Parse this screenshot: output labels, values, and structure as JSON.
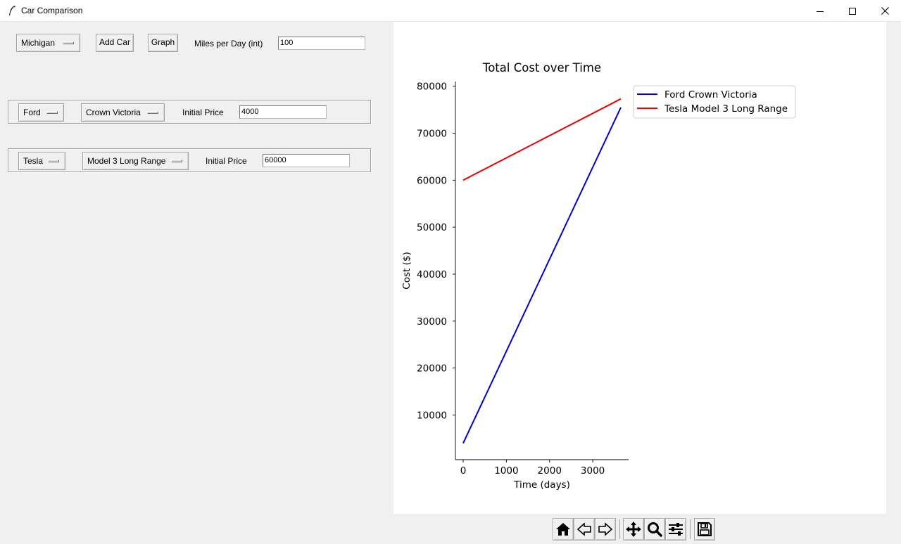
{
  "window": {
    "title": "Car Comparison",
    "app_icon": "feather-icon",
    "controls": [
      "minimize-icon",
      "maximize-icon",
      "close-icon"
    ]
  },
  "controls": {
    "state_selected": "Michigan",
    "add_car_label": "Add Car",
    "graph_label": "Graph",
    "miles_label": "Miles per Day (int)",
    "miles_value": "100"
  },
  "cars": [
    {
      "make": "Ford",
      "model": "Crown Victoria",
      "price_label": "Initial Price",
      "price_value": "4000"
    },
    {
      "make": "Tesla",
      "model": "Model 3 Long Range",
      "price_label": "Initial Price",
      "price_value": "60000"
    }
  ],
  "chart_data": {
    "type": "line",
    "title": "Total Cost over Time",
    "xlabel": "Time (days)",
    "ylabel": "Cost ($)",
    "xlim": [
      -180,
      3830
    ],
    "ylim": [
      500,
      81000
    ],
    "xticks": [
      0,
      1000,
      2000,
      3000
    ],
    "yticks": [
      10000,
      20000,
      30000,
      40000,
      50000,
      60000,
      70000,
      80000
    ],
    "grid": false,
    "legend_position": "upper-right-outside",
    "series": [
      {
        "name": "Ford Crown Victoria",
        "color": "#0000cc",
        "x": [
          0,
          3650
        ],
        "y": [
          4000,
          75500
        ]
      },
      {
        "name": "Tesla Model 3 Long Range",
        "color": "#ee0000",
        "x": [
          0,
          3650
        ],
        "y": [
          60000,
          77300
        ]
      }
    ]
  },
  "toolbar": {
    "buttons": [
      "home-icon",
      "back-icon",
      "forward-icon",
      "pan-icon",
      "zoom-icon",
      "configure-subplots-icon",
      "save-icon"
    ]
  }
}
